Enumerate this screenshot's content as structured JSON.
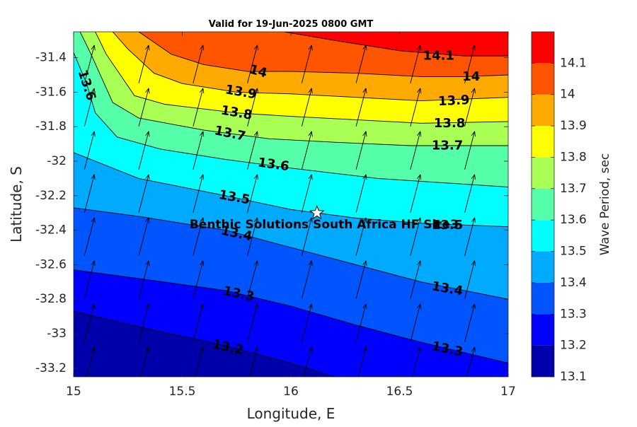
{
  "chart_data": {
    "type": "contour",
    "title": "Valid for 19-Jun-2025 0800 GMT",
    "xlabel": "Longitude, E",
    "ylabel": "Latitude, S",
    "xlim": [
      15,
      17
    ],
    "ylim": [
      -33.25,
      -31.25
    ],
    "x_ticks": [
      "15",
      "15.5",
      "16",
      "16.5",
      "17"
    ],
    "y_ticks": [
      "-31.4",
      "-31.6",
      "-31.8",
      "-32",
      "-32.2",
      "-32.4",
      "-32.6",
      "-32.8",
      "-33",
      "-33.2"
    ],
    "colorbar": {
      "label": "Wave Period, sec",
      "ticks": [
        "14.1",
        "14",
        "13.9",
        "13.8",
        "13.7",
        "13.6",
        "13.5",
        "13.4",
        "13.3",
        "13.2",
        "13.1"
      ],
      "levels": [
        13.1,
        13.2,
        13.3,
        13.4,
        13.5,
        13.6,
        13.7,
        13.8,
        13.9,
        14.0,
        14.1,
        14.2
      ],
      "colors": [
        "#0000aa",
        "#0000ff",
        "#0055ff",
        "#00aaff",
        "#00ffff",
        "#55ffaa",
        "#aaff55",
        "#ffff00",
        "#ffaa00",
        "#ff5500",
        "#ff0000"
      ]
    },
    "contour_lines": [
      {
        "level": 14.1,
        "points": [
          [
            15.97,
            -31.25
          ],
          [
            16.2,
            -31.3
          ],
          [
            16.5,
            -31.36
          ],
          [
            16.8,
            -31.39
          ],
          [
            17.0,
            -31.39
          ]
        ]
      },
      {
        "level": 14.0,
        "points": [
          [
            15.3,
            -31.25
          ],
          [
            15.45,
            -31.38
          ],
          [
            15.6,
            -31.44
          ],
          [
            15.8,
            -31.48
          ],
          [
            16.0,
            -31.48
          ],
          [
            16.3,
            -31.49
          ],
          [
            16.6,
            -31.51
          ],
          [
            16.8,
            -31.51
          ],
          [
            17.0,
            -31.5
          ]
        ]
      },
      {
        "level": 13.9,
        "points": [
          [
            15.18,
            -31.25
          ],
          [
            15.25,
            -31.35
          ],
          [
            15.37,
            -31.49
          ],
          [
            15.5,
            -31.55
          ],
          [
            15.75,
            -31.6
          ],
          [
            16.0,
            -31.61
          ],
          [
            16.3,
            -31.63
          ],
          [
            16.6,
            -31.65
          ],
          [
            17.0,
            -31.63
          ]
        ]
      },
      {
        "level": 13.8,
        "points": [
          [
            15.1,
            -31.25
          ],
          [
            15.15,
            -31.38
          ],
          [
            15.28,
            -31.62
          ],
          [
            15.42,
            -31.67
          ],
          [
            15.75,
            -31.72
          ],
          [
            16.0,
            -31.74
          ],
          [
            16.3,
            -31.76
          ],
          [
            16.6,
            -31.78
          ],
          [
            17.0,
            -31.77
          ]
        ]
      },
      {
        "level": 13.7,
        "points": [
          [
            15.03,
            -31.25
          ],
          [
            15.08,
            -31.38
          ],
          [
            15.18,
            -31.66
          ],
          [
            15.3,
            -31.75
          ],
          [
            15.6,
            -31.82
          ],
          [
            15.9,
            -31.87
          ],
          [
            16.2,
            -31.89
          ],
          [
            16.55,
            -31.91
          ],
          [
            17.0,
            -31.91
          ]
        ]
      },
      {
        "level": 13.6,
        "points": [
          [
            15.0,
            -31.37
          ],
          [
            15.06,
            -31.55
          ],
          [
            15.1,
            -31.72
          ],
          [
            15.2,
            -31.86
          ],
          [
            15.4,
            -31.93
          ],
          [
            15.7,
            -31.99
          ],
          [
            16.0,
            -32.04
          ],
          [
            16.4,
            -32.1
          ],
          [
            17.0,
            -32.15
          ]
        ]
      },
      {
        "level": 13.5,
        "points": [
          [
            15.0,
            -31.95
          ],
          [
            15.3,
            -32.1
          ],
          [
            15.7,
            -32.2
          ],
          [
            16.0,
            -32.28
          ],
          [
            16.3,
            -32.33
          ],
          [
            16.6,
            -32.36
          ],
          [
            17.0,
            -32.38
          ]
        ]
      },
      {
        "level": 13.4,
        "points": [
          [
            15.0,
            -32.27
          ],
          [
            15.3,
            -32.32
          ],
          [
            15.7,
            -32.4
          ],
          [
            16.0,
            -32.5
          ],
          [
            16.3,
            -32.6
          ],
          [
            16.6,
            -32.7
          ],
          [
            17.0,
            -32.8
          ]
        ]
      },
      {
        "level": 13.3,
        "points": [
          [
            15.0,
            -32.63
          ],
          [
            15.3,
            -32.68
          ],
          [
            15.7,
            -32.75
          ],
          [
            16.0,
            -32.84
          ],
          [
            16.3,
            -32.95
          ],
          [
            16.6,
            -33.05
          ],
          [
            17.0,
            -33.17
          ]
        ]
      },
      {
        "level": 13.2,
        "points": [
          [
            15.0,
            -32.87
          ],
          [
            15.3,
            -32.96
          ],
          [
            15.7,
            -33.07
          ],
          [
            16.0,
            -33.17
          ],
          [
            16.2,
            -33.25
          ]
        ]
      }
    ],
    "contour_labels": [
      {
        "text": "14.1",
        "lon": 16.68,
        "lat": -31.39,
        "angle": 0
      },
      {
        "text": "14",
        "lon": 15.85,
        "lat": -31.48,
        "angle": 15
      },
      {
        "text": "14",
        "lon": 16.83,
        "lat": -31.51,
        "angle": 0
      },
      {
        "text": "13.9",
        "lon": 15.77,
        "lat": -31.6,
        "angle": 10
      },
      {
        "text": "13.9",
        "lon": 16.75,
        "lat": -31.65,
        "angle": -3
      },
      {
        "text": "13.8",
        "lon": 15.75,
        "lat": -31.72,
        "angle": 10
      },
      {
        "text": "13.8",
        "lon": 16.73,
        "lat": -31.78,
        "angle": 0
      },
      {
        "text": "13.7",
        "lon": 15.72,
        "lat": -31.84,
        "angle": 12
      },
      {
        "text": "13.7",
        "lon": 16.72,
        "lat": -31.91,
        "angle": 0
      },
      {
        "text": "13.6",
        "lon": 15.06,
        "lat": -31.56,
        "angle": 72
      },
      {
        "text": "13.6",
        "lon": 15.92,
        "lat": -32.02,
        "angle": 8
      },
      {
        "text": "13.5",
        "lon": 15.74,
        "lat": -32.21,
        "angle": 10
      },
      {
        "text": "13.5",
        "lon": 16.72,
        "lat": -32.37,
        "angle": 0
      },
      {
        "text": "13.4",
        "lon": 15.75,
        "lat": -32.42,
        "angle": 12
      },
      {
        "text": "13.4",
        "lon": 16.72,
        "lat": -32.74,
        "angle": 10
      },
      {
        "text": "13.3",
        "lon": 15.76,
        "lat": -32.77,
        "angle": 12
      },
      {
        "text": "13.3",
        "lon": 16.72,
        "lat": -33.09,
        "angle": 12
      },
      {
        "text": "13.2",
        "lon": 15.71,
        "lat": -33.08,
        "angle": 12
      }
    ],
    "vector_field": {
      "description": "Wave direction arrows pointing toward the north-northeast, on a regular grid",
      "lon": [
        15.05,
        15.3,
        15.55,
        15.8,
        16.05,
        16.3,
        16.55,
        16.8
      ],
      "lat": [
        -31.45,
        -31.7,
        -31.95,
        -32.2,
        -32.45,
        -32.7,
        -32.95,
        -33.2
      ],
      "direction": "NNE"
    },
    "site": {
      "label": "Benthic Solutions South Africa HF Site3",
      "lon": 16.12,
      "lat": -32.3,
      "marker": "star"
    }
  }
}
